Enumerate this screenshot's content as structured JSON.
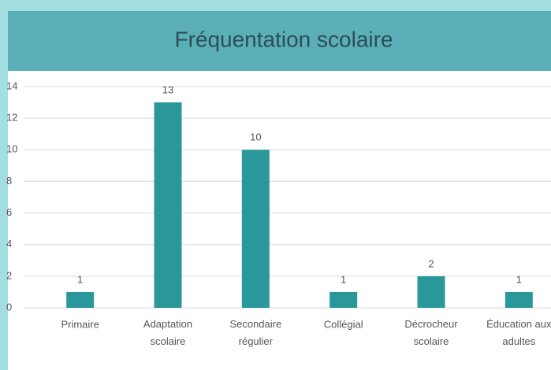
{
  "chart_data": {
    "type": "bar",
    "title": "Fréquentation scolaire",
    "categories": [
      "Primaire",
      "Adaptation scolaire",
      "Secondaire régulier",
      "Collégial",
      "Décrocheur scolaire",
      "Éducation aux adultes"
    ],
    "values": [
      1,
      13,
      10,
      1,
      2,
      1
    ],
    "color": "#2a979b",
    "ylim": [
      0,
      14
    ],
    "yticks": [
      0,
      2,
      4,
      6,
      8,
      10,
      12,
      14
    ],
    "grid": true
  }
}
